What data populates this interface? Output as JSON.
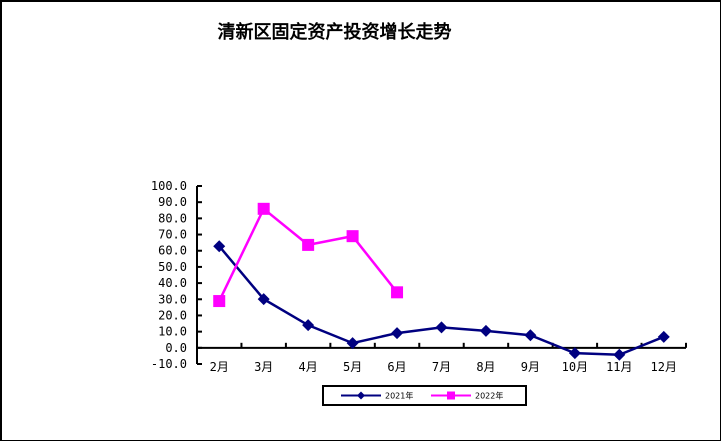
{
  "chart_data": {
    "type": "line",
    "title": "清新区固定资产投资增长走势",
    "xlabel": "",
    "ylabel": "",
    "categories": [
      "2月",
      "3月",
      "4月",
      "5月",
      "6月",
      "7月",
      "8月",
      "9月",
      "10月",
      "11月",
      "12月"
    ],
    "series": [
      {
        "name": "2021年",
        "color": "#000080",
        "marker": "diamond",
        "values": [
          62.8,
          30.1,
          14.0,
          2.9,
          9.1,
          12.6,
          10.5,
          7.8,
          -3.3,
          -4.3,
          6.8
        ]
      },
      {
        "name": "2022年",
        "color": "#FF00FF",
        "marker": "square",
        "values": [
          28.9,
          85.9,
          63.6,
          69.0,
          34.3,
          null,
          null,
          null,
          null,
          null,
          null
        ]
      }
    ],
    "ylim": [
      -10,
      100
    ],
    "yticks": [
      "100.0",
      "90.0",
      "80.0",
      "70.0",
      "60.0",
      "50.0",
      "40.0",
      "30.0",
      "20.0",
      "10.0",
      "0.0",
      "-10.0"
    ],
    "grid": false,
    "legend_position": "bottom"
  }
}
